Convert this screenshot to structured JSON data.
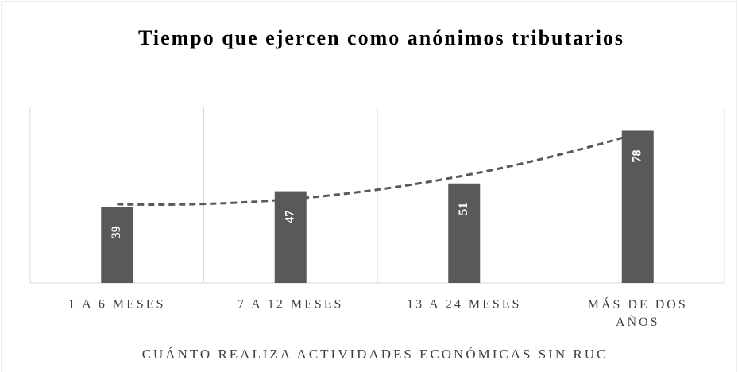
{
  "chart_data": {
    "type": "bar",
    "title": "Tiempo que ejercen como anónimos tributarios",
    "x_label": "CUÁNTO REALIZA ACTIVIDADES ECONÓMICAS SIN RUC",
    "categories": [
      "1 A 6 MESES",
      "7 A 12 MESES",
      "13 A 24 MESES",
      "MÁS DE DOS AÑOS"
    ],
    "values": [
      39,
      47,
      51,
      78
    ],
    "color": "#595959",
    "ylim": [
      0,
      90
    ],
    "trendline": {
      "type": "polynomial",
      "order": 2,
      "color": "#595959"
    },
    "grid": "x"
  }
}
